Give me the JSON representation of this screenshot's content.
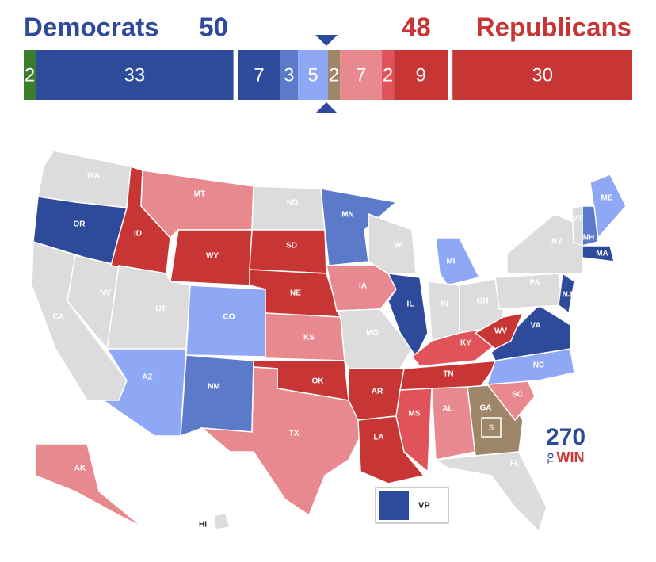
{
  "header": {
    "left_label": "Democrats",
    "left_count": "50",
    "right_count": "48",
    "right_label": "Republicans"
  },
  "balance_bar": {
    "segments": [
      {
        "value": 2,
        "color": "#3a7d2c"
      },
      {
        "value": 33,
        "color": "#2e4a9a"
      },
      {
        "value": 7,
        "color": "#2e4a9a"
      },
      {
        "value": 3,
        "color": "#5b7ac9"
      },
      {
        "value": 5,
        "color": "#8fa8f5"
      },
      {
        "value": 2,
        "color": "#9e8769"
      },
      {
        "value": 7,
        "color": "#e8898f"
      },
      {
        "value": 2,
        "color": "#e05358"
      },
      {
        "value": 9,
        "color": "#c73535"
      },
      {
        "value": 30,
        "color": "#c73535"
      }
    ]
  },
  "map": {
    "states": [
      {
        "label": "WA",
        "color": "#dcdcdc"
      },
      {
        "label": "OR",
        "color": "#2e4a9a"
      },
      {
        "label": "CA",
        "color": "#dcdcdc"
      },
      {
        "label": "NV",
        "color": "#dcdcdc"
      },
      {
        "label": "ID",
        "color": "#c73535"
      },
      {
        "label": "MT",
        "color": "#e8898f"
      },
      {
        "label": "WY",
        "color": "#c73535"
      },
      {
        "label": "UT",
        "color": "#dcdcdc"
      },
      {
        "label": "AZ",
        "color": "#8fa8f5"
      },
      {
        "label": "CO",
        "color": "#8fa8f5"
      },
      {
        "label": "NM",
        "color": "#5b7ac9"
      },
      {
        "label": "ND",
        "color": "#dcdcdc"
      },
      {
        "label": "SD",
        "color": "#c73535"
      },
      {
        "label": "NE",
        "color": "#c73535"
      },
      {
        "label": "KS",
        "color": "#e8898f"
      },
      {
        "label": "OK",
        "color": "#c73535"
      },
      {
        "label": "TX",
        "color": "#e8898f"
      },
      {
        "label": "MN",
        "color": "#5b7ac9"
      },
      {
        "label": "IA",
        "color": "#e8898f"
      },
      {
        "label": "MO",
        "color": "#dcdcdc"
      },
      {
        "label": "AR",
        "color": "#c73535"
      },
      {
        "label": "LA",
        "color": "#c73535"
      },
      {
        "label": "WI",
        "color": "#dcdcdc"
      },
      {
        "label": "IL",
        "color": "#2e4a9a"
      },
      {
        "label": "MI",
        "color": "#8fa8f5"
      },
      {
        "label": "IN",
        "color": "#dcdcdc"
      },
      {
        "label": "OH",
        "color": "#dcdcdc"
      },
      {
        "label": "KY",
        "color": "#e05358"
      },
      {
        "label": "TN",
        "color": "#c73535"
      },
      {
        "label": "MS",
        "color": "#e05358"
      },
      {
        "label": "AL",
        "color": "#e8898f"
      },
      {
        "label": "GA",
        "color": "#9e8769"
      },
      {
        "label": "FL",
        "color": "#dcdcdc"
      },
      {
        "label": "SC",
        "color": "#e8898f"
      },
      {
        "label": "NC",
        "color": "#8fa8f5"
      },
      {
        "label": "VA",
        "color": "#2e4a9a"
      },
      {
        "label": "WV",
        "color": "#c73535"
      },
      {
        "label": "PA",
        "color": "#dcdcdc"
      },
      {
        "label": "NY",
        "color": "#dcdcdc"
      },
      {
        "label": "NJ",
        "color": "#2e4a9a"
      },
      {
        "label": "ME",
        "color": "#8fa8f5"
      },
      {
        "label": "NH",
        "color": "#5b7ac9"
      },
      {
        "label": "VT",
        "color": "#dcdcdc"
      },
      {
        "label": "MA",
        "color": "#2e4a9a"
      },
      {
        "label": "AK",
        "color": "#e8898f"
      },
      {
        "label": "HI",
        "color": "#dcdcdc"
      }
    ],
    "special_marker": "S",
    "legend": {
      "label": "VP",
      "color": "#2e4a9a"
    },
    "logo": {
      "number": "270",
      "to": "TO",
      "win": "WIN"
    }
  }
}
